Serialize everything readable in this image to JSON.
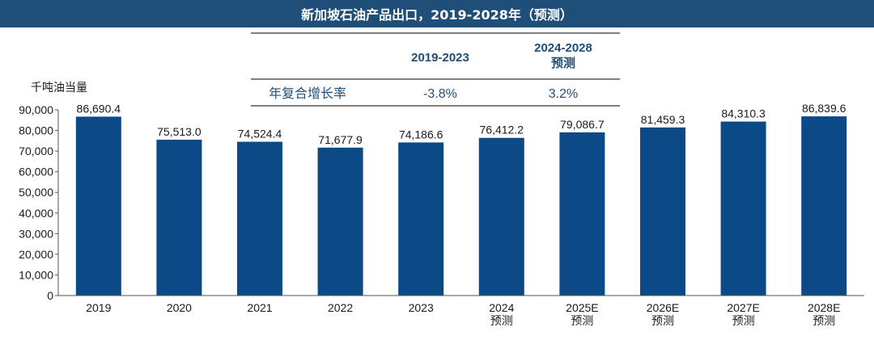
{
  "header": {
    "title": "新加坡石油产品出口，2019-2028年（预测）"
  },
  "cagr_table": {
    "columns": [
      {
        "lines": [
          "2019-2023"
        ]
      },
      {
        "lines": [
          "2024-2028",
          "预测"
        ]
      }
    ],
    "row_label": "年复合增长率",
    "values": [
      "-3.8%",
      "3.2%"
    ]
  },
  "chart_data": {
    "type": "bar",
    "ylabel": "千吨油当量",
    "ylim": [
      0,
      90000
    ],
    "yticks": [
      "0",
      "10,000",
      "20,000",
      "30,000",
      "40,000",
      "50,000",
      "60,000",
      "70,000",
      "80,000",
      "90,000"
    ],
    "categories": [
      [
        "2019"
      ],
      [
        "2020"
      ],
      [
        "2021"
      ],
      [
        "2022"
      ],
      [
        "2023"
      ],
      [
        "2024",
        "预测"
      ],
      [
        "2025E",
        "预测"
      ],
      [
        "2026E",
        "预测"
      ],
      [
        "2027E",
        "预测"
      ],
      [
        "2028E",
        "预测"
      ]
    ],
    "values": [
      86690.4,
      75513.0,
      74524.4,
      71677.9,
      74186.6,
      76412.2,
      79086.7,
      81459.3,
      84310.3,
      86839.6
    ],
    "value_labels": [
      "86,690.4",
      "75,513.0",
      "74,524.4",
      "71,677.9",
      "74,186.6",
      "76,412.2",
      "79,086.7",
      "81,459.3",
      "84,310.3",
      "86,839.6"
    ],
    "bar_color": "#0b4a86",
    "grid": false,
    "legend": "none"
  }
}
